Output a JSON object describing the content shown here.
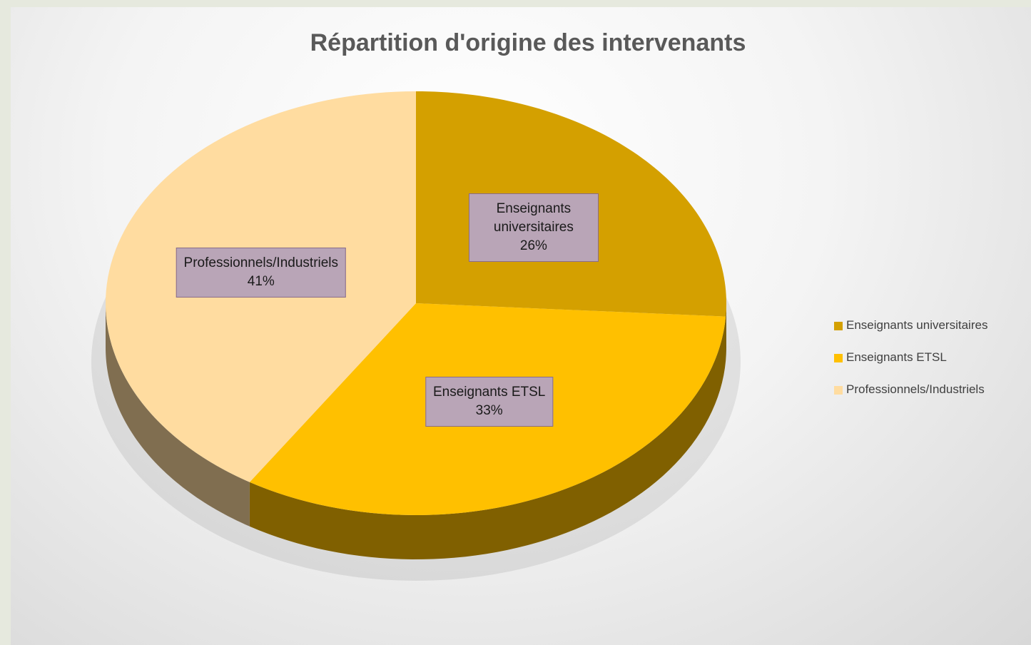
{
  "chart_data": {
    "type": "pie",
    "title": "Répartition d'origine des intervenants",
    "categories": [
      "Enseignants universitaires",
      "Enseignants ETSL",
      "Professionnels/Industriels"
    ],
    "values": [
      26,
      33,
      41
    ],
    "value_labels": [
      "26%",
      "33%",
      "41%"
    ],
    "colors": [
      "#d4a000",
      "#ffc000",
      "#ffdca0"
    ],
    "legend": "right",
    "three_d": true
  }
}
